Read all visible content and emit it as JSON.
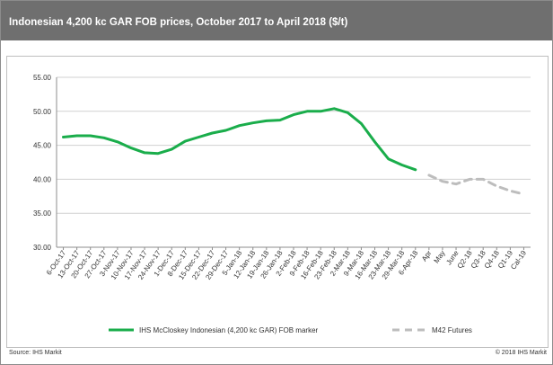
{
  "header": {
    "title": "Indonesian 4,200 kc GAR FOB prices, October 2017 to April 2018 ($/t)"
  },
  "footer": {
    "source": "Source: IHS Markit",
    "copyright": "© 2018 IHS Markit"
  },
  "colors": {
    "header_bg": "#6f6f6f",
    "marker_line": "#1aad4b",
    "futures_line": "#bdbdbd",
    "grid": "#d0d0d0"
  },
  "chart_data": {
    "type": "line",
    "title": "Indonesian 4,200 kc GAR FOB prices, October 2017 to April 2018 ($/t)",
    "xlabel": "",
    "ylabel": "",
    "ylim": [
      30,
      55
    ],
    "yticks": [
      "30.00",
      "35.00",
      "40.00",
      "45.00",
      "50.00",
      "55.00"
    ],
    "ytick_values": [
      30,
      35,
      40,
      45,
      50,
      55
    ],
    "grid": true,
    "legend_position": "bottom",
    "categories": [
      "6-Oct-17",
      "13-Oct-17",
      "20-Oct-17",
      "27-Oct-17",
      "3-Nov-17",
      "10-Nov-17",
      "17-Nov-17",
      "24-Nov-17",
      "1-Dec-17",
      "8-Dec-17",
      "15-Dec-17",
      "22-Dec-17",
      "29-Dec-17",
      "5-Jan-18",
      "12-Jan-18",
      "19-Jan-18",
      "26-Jan-18",
      "2-Feb-18",
      "9-Feb-18",
      "16-Feb-18",
      "23-Feb-18",
      "2-Mar-18",
      "9-Mar-18",
      "16-Mar-18",
      "23-Mar-18",
      "29-Mar-18",
      "6-Apr-18",
      "Apr",
      "May",
      "June",
      "Q2-18",
      "Q3-18",
      "Q4-18",
      "Q1-19",
      "Cal-19"
    ],
    "series": [
      {
        "name": "IHS McCloskey Indonesian (4,200 kc GAR) FOB marker",
        "color": "#1aad4b",
        "style": "solid",
        "values": [
          46.2,
          46.4,
          46.4,
          46.1,
          45.5,
          44.6,
          43.9,
          43.8,
          44.4,
          45.6,
          46.2,
          46.8,
          47.2,
          47.9,
          48.3,
          48.6,
          48.7,
          49.5,
          50.0,
          50.0,
          50.4,
          49.8,
          48.2,
          45.5,
          43.0,
          42.1,
          41.4,
          null,
          null,
          null,
          null,
          null,
          null,
          null,
          null
        ]
      },
      {
        "name": "M42 Futures",
        "color": "#bdbdbd",
        "style": "dashed",
        "values": [
          null,
          null,
          null,
          null,
          null,
          null,
          null,
          null,
          null,
          null,
          null,
          null,
          null,
          null,
          null,
          null,
          null,
          null,
          null,
          null,
          null,
          null,
          null,
          null,
          null,
          null,
          null,
          40.6,
          39.7,
          39.3,
          40.0,
          40.0,
          39.0,
          38.3,
          37.8
        ]
      }
    ]
  }
}
